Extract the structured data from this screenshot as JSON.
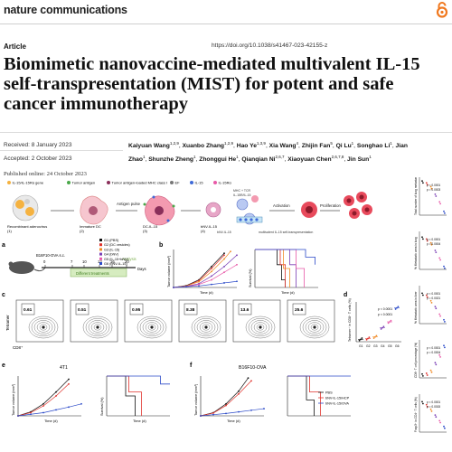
{
  "journal": {
    "name": "nature communications"
  },
  "article": {
    "type": "Article",
    "doi": "https://doi.org/10.1038/s41467-023-42155-z",
    "title": "Biomimetic nanovaccine-mediated multivalent IL-15 self-transpresentation (MIST) for potent and safe cancer immunotherapy",
    "received": "Received: 8 January 2023",
    "accepted": "Accepted: 2 October 2023",
    "published": "Published online: 24 October 2023"
  },
  "authors": [
    {
      "name": "Kaiyuan Wang",
      "aff": "1,2,9"
    },
    {
      "name": "Xuanbo Zhang",
      "aff": "1,2,9"
    },
    {
      "name": "Hao Ye",
      "aff": "1,3,9"
    },
    {
      "name": "Xia Wang",
      "aff": "4"
    },
    {
      "name": "Zhijin Fan",
      "aff": "5"
    },
    {
      "name": "Qi Lu",
      "aff": "1"
    },
    {
      "name": "Songhao Li",
      "aff": "1"
    },
    {
      "name": "Jian Zhao",
      "aff": "1"
    },
    {
      "name": "Shunzhe Zheng",
      "aff": "1"
    },
    {
      "name": "Zhonggui He",
      "aff": "1"
    },
    {
      "name": "Qianqian Ni",
      "aff": "2,6,7"
    },
    {
      "name": "Xiaoyuan Chen",
      "aff": "2,6,7,8"
    },
    {
      "name": "Jin Sun",
      "aff": "1"
    }
  ],
  "figure": {
    "schematic": {
      "legend": [
        "IL-15/IL-15Rα gene",
        "Tumor antigen",
        "Tumor antigen-loaded MHC class I",
        "EF",
        "IL-15",
        "IL-15Rα"
      ],
      "steps": [
        "Recombinant adenovirus\n(1)",
        "Immature DC\n(2)",
        "DC-IL-15\n(3)",
        "bNV-IL-15\n(4)"
      ],
      "arrows": [
        "Antigen pulse",
        "Activation",
        "Proliferation"
      ],
      "labels": [
        "multivalent IL-15 self-transpresentation",
        "MHC + TCR",
        "IL-15R/IL-15",
        "bNV-IL-15",
        "CD8⁺"
      ]
    },
    "panel_a": {
      "label": "a",
      "mouse": "B16F10-OVA\ns.c.",
      "days": [
        "0",
        "7",
        "10",
        "13",
        "16",
        "20"
      ],
      "days_unit": "Days",
      "analysis": "Analysis",
      "treatments": "Different treatments",
      "groups": [
        "G1 (PBS)",
        "G2 (DC vesicles)",
        "G3 (IL-15)",
        "G4 (bNV)",
        "G5 (IL-15+bNV)",
        "G6 (bNV-IL-15)"
      ]
    },
    "panel_b": {
      "label": "b",
      "ylabel": "Tumor volume (mm³)",
      "xlabel": "Time (d)",
      "ylabel2": "Survival (%)",
      "xlabel2": "Time (d)"
    },
    "panel_c": {
      "label": "c",
      "values": [
        "0.61",
        "0.51",
        "0.95",
        "8.38",
        "13.6",
        "25.6"
      ],
      "ylabel": "Tetramer",
      "xlabel": "CD8⁺"
    },
    "panel_d": {
      "label": "d",
      "ylabel": "Tetramer⁺ in CD8⁺ T cells (%)",
      "pvals": [
        "p < 0.0001",
        "p < 0.0001"
      ],
      "groups": [
        "G1",
        "G2",
        "G3",
        "G4",
        "G5",
        "G6"
      ]
    },
    "panel_e": {
      "label": "e",
      "title": "4T1",
      "ylabel": "Tumor volume (mm³)",
      "xlabel": "Time (d)",
      "ylabel2": "Survival (%)",
      "xlabel2": "Time (d)"
    },
    "panel_f": {
      "label": "f",
      "title": "B16F10-OVA",
      "ylabel": "Tumor volume (mm³)",
      "xlabel": "Time (d)",
      "legend": [
        "PBS",
        "bNV-IL-15/HCP",
        "bNV-IL-15/OVA"
      ]
    },
    "side_panels": [
      {
        "ylabel": "Total number of lung metastases",
        "pvals": [
          "p < 0.0001",
          "p = 0.0003"
        ]
      },
      {
        "ylabel": "% Metastatic area in lung",
        "pvals": [
          "p < 0.0001",
          "p = 0.0004"
        ]
      },
      {
        "ylabel": "% Metastatic area in liver",
        "pvals": [
          "p < 0.0001",
          "p = 0.0021"
        ]
      },
      {
        "ylabel": "CD8⁺ T cell percentage (%)",
        "pvals": [
          "p < 0.0001",
          "p = 0.0004"
        ]
      },
      {
        "ylabel": "Foxp3⁺ in CD4⁺ T cells (%)",
        "pvals": [
          "p < 0.0001",
          "p = 0.0015"
        ]
      }
    ]
  },
  "colors": {
    "g1": "#111111",
    "g2": "#e0312b",
    "g3": "#f08a24",
    "g4": "#7a3fb5",
    "g5": "#e85aa8",
    "g6": "#2a49c8",
    "accent": "#f4a82c"
  }
}
